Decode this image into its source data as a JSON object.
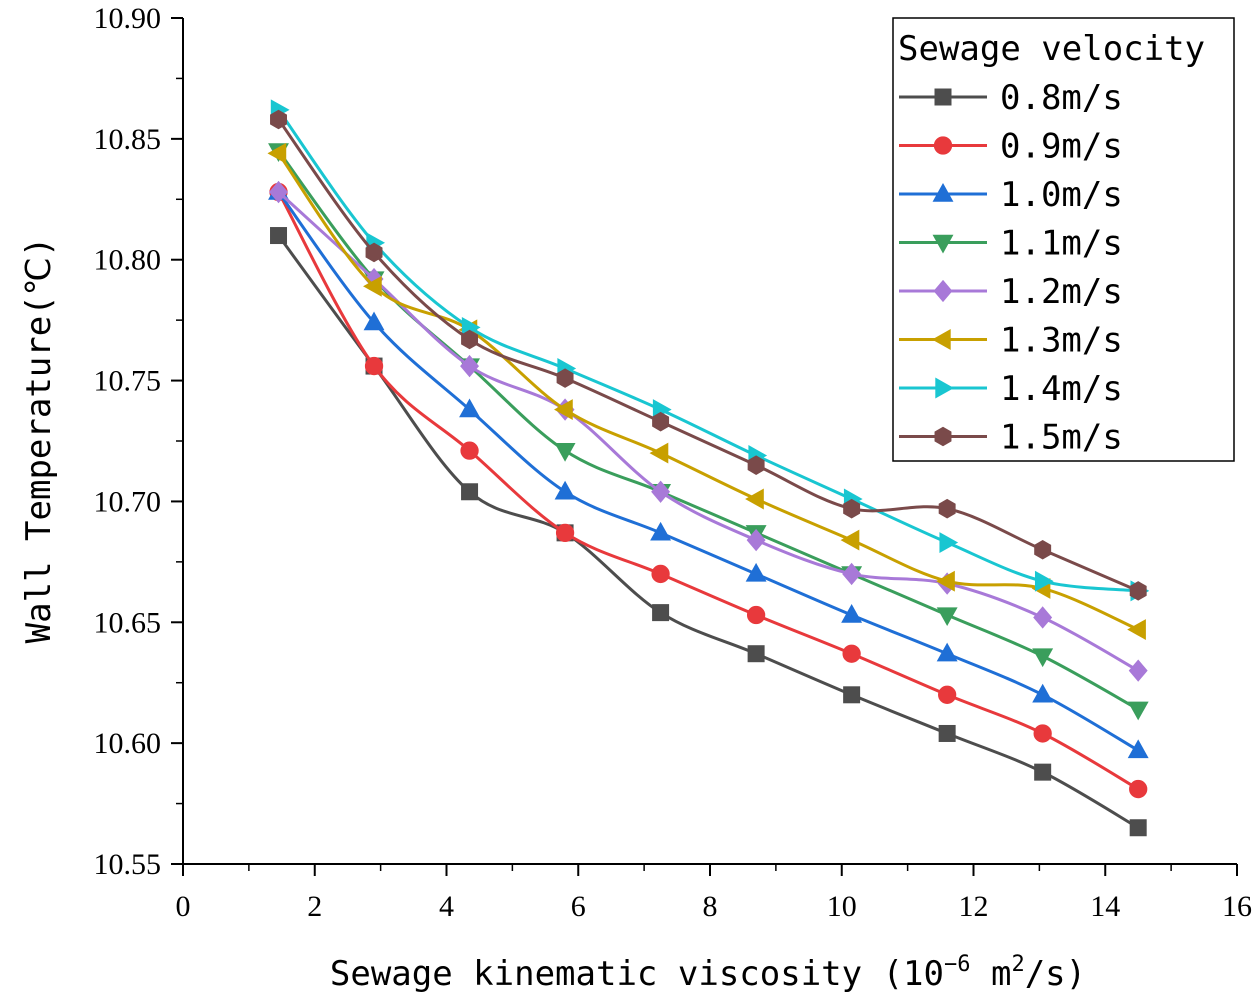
{
  "chart_data": {
    "type": "line",
    "title": "",
    "xlabel": "Sewage kinematic viscosity (10^-6 m^2/s)",
    "xlabel_parts": [
      "Sewage kinematic viscosity (10",
      "−6",
      " m",
      "2",
      "/s)"
    ],
    "ylabel": "Wall Temperature(℃)",
    "xlim": [
      0,
      16
    ],
    "ylim": [
      10.55,
      10.9
    ],
    "xticks": [
      "0",
      "2",
      "4",
      "6",
      "8",
      "10",
      "12",
      "14",
      "16"
    ],
    "yticks": [
      "10.55",
      "10.60",
      "10.65",
      "10.70",
      "10.75",
      "10.80",
      "10.85",
      "10.90"
    ],
    "grid": false,
    "legend_title": "Sewage velocity",
    "legend_position": "top-right",
    "x": [
      1.45,
      2.9,
      4.35,
      5.8,
      7.25,
      8.7,
      10.15,
      11.6,
      13.05,
      14.5
    ],
    "series": [
      {
        "name": "0.8m/s",
        "color": "#4d4d4d",
        "marker": "square",
        "values": [
          10.81,
          10.756,
          10.704,
          10.687,
          10.654,
          10.637,
          10.62,
          10.604,
          10.588,
          10.565
        ]
      },
      {
        "name": "0.9m/s",
        "color": "#e8393c",
        "marker": "circle",
        "values": [
          10.828,
          10.756,
          10.721,
          10.687,
          10.67,
          10.653,
          10.637,
          10.62,
          10.604,
          10.581
        ]
      },
      {
        "name": "1.0m/s",
        "color": "#1f6fd6",
        "marker": "triangle-up",
        "values": [
          10.828,
          10.774,
          10.738,
          10.704,
          10.687,
          10.67,
          10.653,
          10.637,
          10.62,
          10.597
        ]
      },
      {
        "name": "1.1m/s",
        "color": "#3a9e5c",
        "marker": "triangle-down",
        "values": [
          10.845,
          10.792,
          10.756,
          10.721,
          10.704,
          10.687,
          10.67,
          10.653,
          10.636,
          10.614
        ]
      },
      {
        "name": "1.2m/s",
        "color": "#a879d8",
        "marker": "diamond",
        "values": [
          10.828,
          10.792,
          10.756,
          10.738,
          10.704,
          10.684,
          10.67,
          10.666,
          10.652,
          10.63
        ]
      },
      {
        "name": "1.3m/s",
        "color": "#c8a000",
        "marker": "triangle-left",
        "values": [
          10.844,
          10.789,
          10.771,
          10.738,
          10.72,
          10.701,
          10.684,
          10.667,
          10.664,
          10.647
        ]
      },
      {
        "name": "1.4m/s",
        "color": "#19c6d1",
        "marker": "triangle-right",
        "values": [
          10.862,
          10.807,
          10.772,
          10.755,
          10.738,
          10.719,
          10.701,
          10.683,
          10.667,
          10.663
        ]
      },
      {
        "name": "1.5m/s",
        "color": "#7a4a4a",
        "marker": "hexagon",
        "values": [
          10.858,
          10.803,
          10.767,
          10.751,
          10.733,
          10.715,
          10.697,
          10.697,
          10.68,
          10.663
        ]
      }
    ]
  }
}
